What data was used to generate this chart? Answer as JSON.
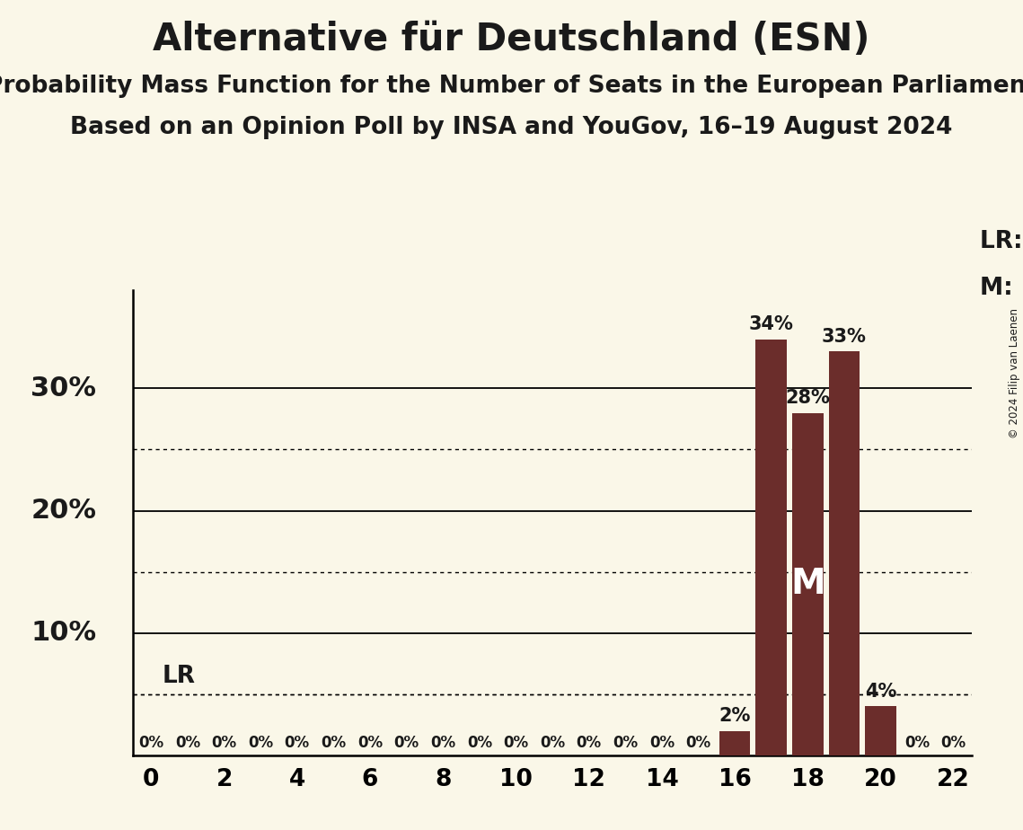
{
  "title": "Alternative für Deutschland (ESN)",
  "subtitle1": "Probability Mass Function for the Number of Seats in the European Parliament",
  "subtitle2": "Based on an Opinion Poll by INSA and YouGov, 16–19 August 2024",
  "copyright": "© 2024 Filip van Laenen",
  "seats": [
    0,
    1,
    2,
    3,
    4,
    5,
    6,
    7,
    8,
    9,
    10,
    11,
    12,
    13,
    14,
    15,
    16,
    17,
    18,
    19,
    20,
    21,
    22
  ],
  "probabilities": [
    0,
    0,
    0,
    0,
    0,
    0,
    0,
    0,
    0,
    0,
    0,
    0,
    0,
    0,
    0,
    0,
    2,
    34,
    28,
    33,
    4,
    0,
    0
  ],
  "bar_color": "#6B2D2B",
  "background_color": "#FAF7E8",
  "text_color": "#1A1A1A",
  "median_seat": 18,
  "last_result_y": 5.0,
  "ylim_max": 38,
  "xlim": [
    -0.5,
    22.5
  ],
  "yticks_solid": [
    10,
    20,
    30
  ],
  "yticks_dotted": [
    5,
    15,
    25
  ],
  "xticks": [
    0,
    2,
    4,
    6,
    8,
    10,
    12,
    14,
    16,
    18,
    20,
    22
  ],
  "title_fontsize": 30,
  "subtitle_fontsize": 19,
  "tick_fontsize": 19,
  "bar_label_fontsize": 15,
  "zero_label_fontsize": 12,
  "legend_fontsize": 19,
  "ylabel_fontsize": 22,
  "M_fontsize": 28,
  "LR_fontsize": 19
}
